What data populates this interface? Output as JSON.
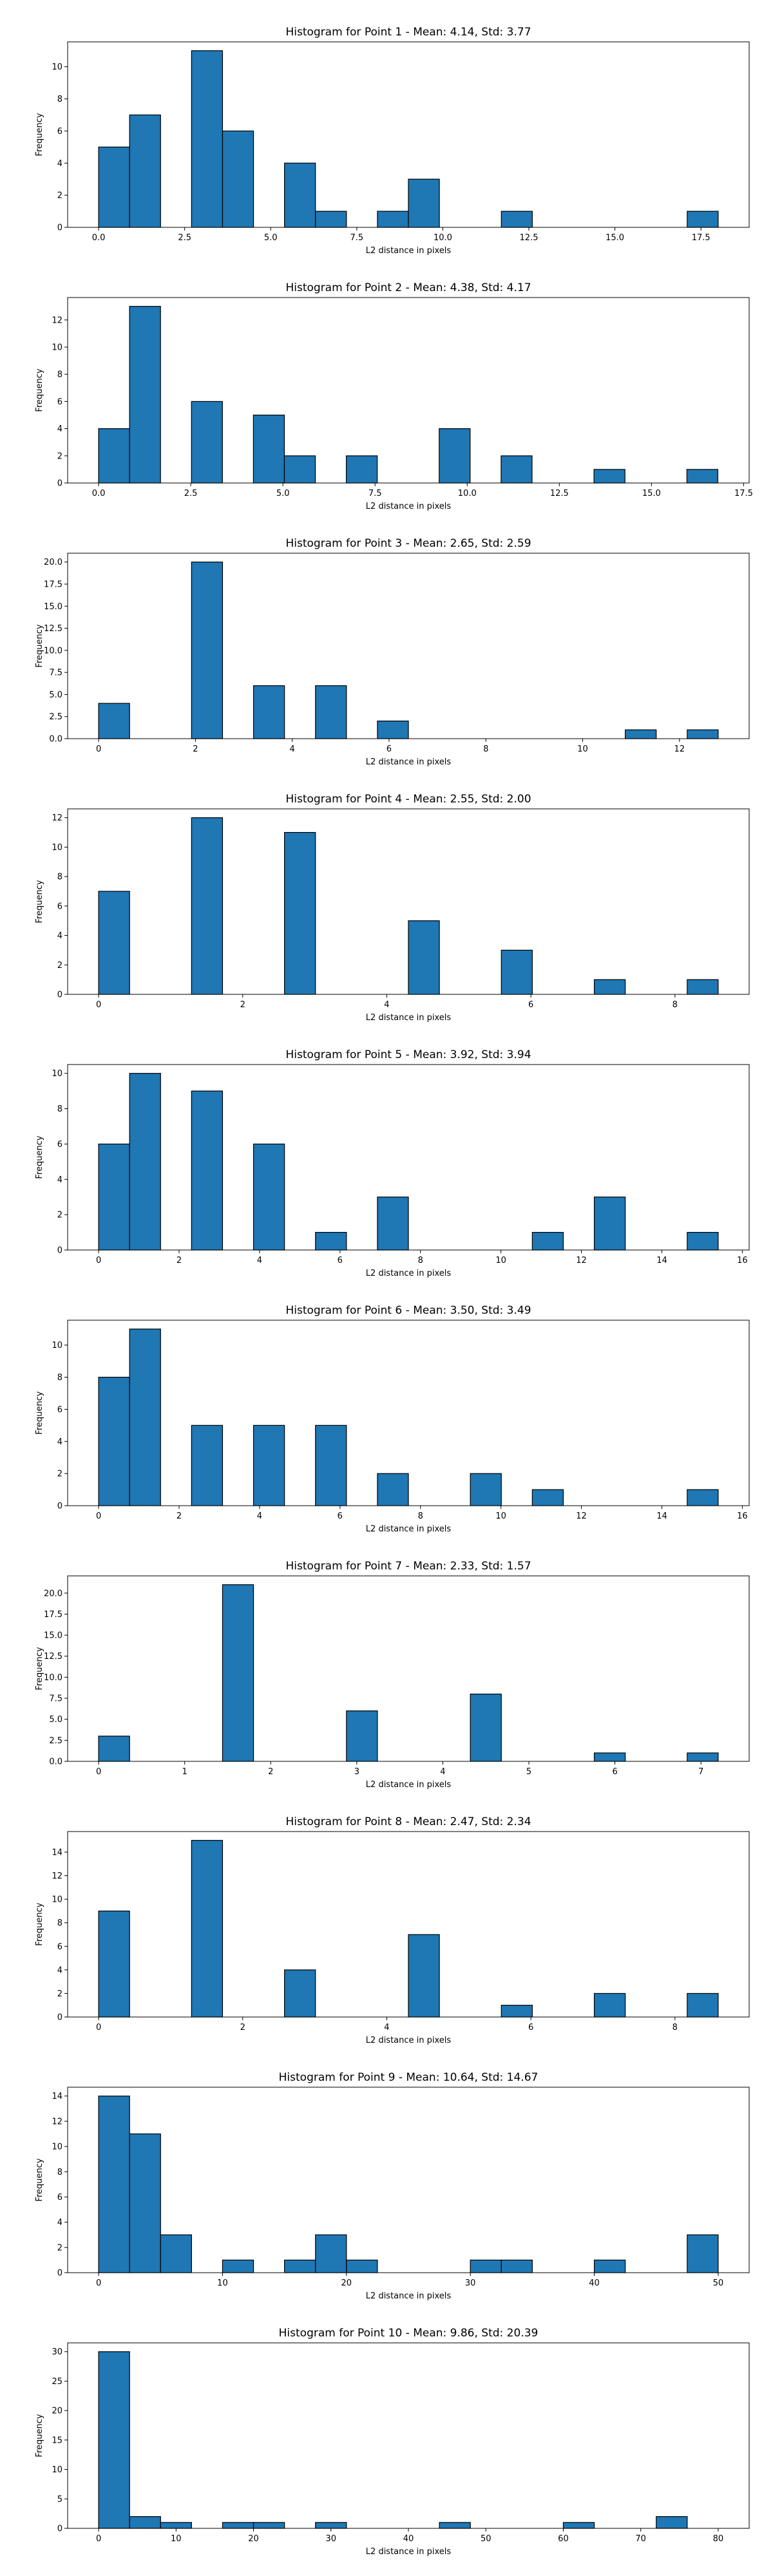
{
  "figure": {
    "background": "#ffffff",
    "bar_color": "#1f77b4",
    "edge_color": "#000000"
  },
  "chart_data": [
    {
      "type": "bar",
      "title": "Histogram for Point 1 - Mean: 4.14, Std: 3.77",
      "xlabel": "L2 distance in pixels",
      "ylabel": "Frequency",
      "xlim": [
        -0.9,
        18.9
      ],
      "ylim": [
        0,
        11.55
      ],
      "xticks": [
        0,
        2.5,
        5,
        7.5,
        10,
        12.5,
        15,
        17.5
      ],
      "xtick_labels": [
        "0.0",
        "2.5",
        "5.0",
        "7.5",
        "10.0",
        "12.5",
        "15.0",
        "17.5"
      ],
      "yticks": [
        0,
        2,
        4,
        6,
        8,
        10
      ],
      "ytick_labels": [
        "0",
        "2",
        "4",
        "6",
        "8",
        "10"
      ],
      "bins": [
        0,
        0.9,
        1.8,
        2.7,
        3.6,
        4.5,
        5.4,
        6.3,
        7.2,
        8.1,
        9.0,
        9.9,
        10.8,
        11.7,
        12.6,
        13.5,
        14.4,
        15.3,
        16.2,
        17.1,
        18.0
      ],
      "counts": [
        5,
        7,
        0,
        11,
        6,
        0,
        4,
        1,
        0,
        1,
        3,
        0,
        0,
        1,
        0,
        0,
        0,
        0,
        0,
        1
      ]
    },
    {
      "type": "bar",
      "title": "Histogram for Point 2 - Mean: 4.38, Std: 4.17",
      "xlabel": "L2 distance in pixels",
      "ylabel": "Frequency",
      "xlim": [
        -0.84,
        17.65
      ],
      "ylim": [
        0,
        13.65
      ],
      "xticks": [
        0,
        2.5,
        5,
        7.5,
        10,
        12.5,
        15,
        17.5
      ],
      "xtick_labels": [
        "0.0",
        "2.5",
        "5.0",
        "7.5",
        "10.0",
        "12.5",
        "15.0",
        "17.5"
      ],
      "yticks": [
        0,
        2,
        4,
        6,
        8,
        10,
        12
      ],
      "ytick_labels": [
        "0",
        "2",
        "4",
        "6",
        "8",
        "10",
        "12"
      ],
      "bins": [
        0,
        0.84,
        1.68,
        2.52,
        3.36,
        4.2,
        5.04,
        5.88,
        6.72,
        7.56,
        8.4,
        9.24,
        10.08,
        10.92,
        11.76,
        12.6,
        13.44,
        14.28,
        15.12,
        15.96,
        16.8
      ],
      "counts": [
        4,
        13,
        0,
        6,
        0,
        5,
        2,
        0,
        2,
        0,
        0,
        4,
        0,
        2,
        0,
        0,
        1,
        0,
        0,
        1
      ]
    },
    {
      "type": "bar",
      "title": "Histogram for Point 3 - Mean: 2.65, Std: 2.59",
      "xlabel": "L2 distance in pixels",
      "ylabel": "Frequency",
      "xlim": [
        -0.64,
        13.44
      ],
      "ylim": [
        0,
        21
      ],
      "xticks": [
        0,
        2,
        4,
        6,
        8,
        10,
        12
      ],
      "xtick_labels": [
        "0",
        "2",
        "4",
        "6",
        "8",
        "10",
        "12"
      ],
      "yticks": [
        0,
        2.5,
        5,
        7.5,
        10,
        12.5,
        15,
        17.5,
        20
      ],
      "ytick_labels": [
        "0.0",
        "2.5",
        "5.0",
        "7.5",
        "10.0",
        "12.5",
        "15.0",
        "17.5",
        "20.0"
      ],
      "bins": [
        0,
        0.64,
        1.28,
        1.92,
        2.56,
        3.2,
        3.84,
        4.48,
        5.12,
        5.76,
        6.4,
        7.04,
        7.68,
        8.32,
        8.96,
        9.6,
        10.24,
        10.88,
        11.52,
        12.16,
        12.8
      ],
      "counts": [
        4,
        0,
        0,
        20,
        0,
        6,
        0,
        6,
        0,
        2,
        0,
        0,
        0,
        0,
        0,
        0,
        0,
        1,
        0,
        1
      ]
    },
    {
      "type": "bar",
      "title": "Histogram for Point 4 - Mean: 2.55, Std: 2.00",
      "xlabel": "L2 distance in pixels",
      "ylabel": "Frequency",
      "xlim": [
        -0.43,
        9.03
      ],
      "ylim": [
        0,
        12.6
      ],
      "xticks": [
        0,
        2,
        4,
        6,
        8
      ],
      "xtick_labels": [
        "0",
        "2",
        "4",
        "6",
        "8"
      ],
      "yticks": [
        0,
        2,
        4,
        6,
        8,
        10,
        12
      ],
      "ytick_labels": [
        "0",
        "2",
        "4",
        "6",
        "8",
        "10",
        "12"
      ],
      "bins": [
        0,
        0.43,
        0.86,
        1.29,
        1.72,
        2.15,
        2.58,
        3.01,
        3.44,
        3.87,
        4.3,
        4.73,
        5.16,
        5.59,
        6.02,
        6.45,
        6.88,
        7.31,
        7.74,
        8.17,
        8.6
      ],
      "counts": [
        7,
        0,
        0,
        12,
        0,
        0,
        11,
        0,
        0,
        0,
        5,
        0,
        0,
        3,
        0,
        0,
        1,
        0,
        0,
        1
      ]
    },
    {
      "type": "bar",
      "title": "Histogram for Point 5 - Mean: 3.92, Std: 3.94",
      "xlabel": "L2 distance in pixels",
      "ylabel": "Frequency",
      "xlim": [
        -0.77,
        16.17
      ],
      "ylim": [
        0,
        10.5
      ],
      "xticks": [
        0,
        2,
        4,
        6,
        8,
        10,
        12,
        14,
        16
      ],
      "xtick_labels": [
        "0",
        "2",
        "4",
        "6",
        "8",
        "10",
        "12",
        "14",
        "16"
      ],
      "yticks": [
        0,
        2,
        4,
        6,
        8,
        10
      ],
      "ytick_labels": [
        "0",
        "2",
        "4",
        "6",
        "8",
        "10"
      ],
      "bins": [
        0,
        0.77,
        1.54,
        2.31,
        3.08,
        3.85,
        4.62,
        5.39,
        6.16,
        6.93,
        7.7,
        8.47,
        9.24,
        10.01,
        10.78,
        11.55,
        12.32,
        13.09,
        13.86,
        14.63,
        15.4
      ],
      "counts": [
        6,
        10,
        0,
        9,
        0,
        6,
        0,
        1,
        0,
        3,
        0,
        0,
        0,
        0,
        1,
        0,
        3,
        0,
        0,
        1
      ]
    },
    {
      "type": "bar",
      "title": "Histogram for Point 6 - Mean: 3.50, Std: 3.49",
      "xlabel": "L2 distance in pixels",
      "ylabel": "Frequency",
      "xlim": [
        -0.77,
        16.17
      ],
      "ylim": [
        0,
        11.55
      ],
      "xticks": [
        0,
        2,
        4,
        6,
        8,
        10,
        12,
        14,
        16
      ],
      "xtick_labels": [
        "0",
        "2",
        "4",
        "6",
        "8",
        "10",
        "12",
        "14",
        "16"
      ],
      "yticks": [
        0,
        2,
        4,
        6,
        8,
        10
      ],
      "ytick_labels": [
        "0",
        "2",
        "4",
        "6",
        "8",
        "10"
      ],
      "bins": [
        0,
        0.77,
        1.54,
        2.31,
        3.08,
        3.85,
        4.62,
        5.39,
        6.16,
        6.93,
        7.7,
        8.47,
        9.24,
        10.01,
        10.78,
        11.55,
        12.32,
        13.09,
        13.86,
        14.63,
        15.4
      ],
      "counts": [
        8,
        11,
        0,
        5,
        0,
        5,
        0,
        5,
        0,
        2,
        0,
        0,
        2,
        0,
        1,
        0,
        0,
        0,
        0,
        1
      ]
    },
    {
      "type": "bar",
      "title": "Histogram for Point 7 - Mean: 2.33, Std: 1.57",
      "xlabel": "L2 distance in pixels",
      "ylabel": "Frequency",
      "xlim": [
        -0.36,
        7.56
      ],
      "ylim": [
        0,
        22.05
      ],
      "xticks": [
        0,
        1,
        2,
        3,
        4,
        5,
        6,
        7
      ],
      "xtick_labels": [
        "0",
        "1",
        "2",
        "3",
        "4",
        "5",
        "6",
        "7"
      ],
      "yticks": [
        0,
        2.5,
        5,
        7.5,
        10,
        12.5,
        15,
        17.5,
        20
      ],
      "ytick_labels": [
        "0.0",
        "2.5",
        "5.0",
        "7.5",
        "10.0",
        "12.5",
        "15.0",
        "17.5",
        "20.0"
      ],
      "bins": [
        0,
        0.36,
        0.72,
        1.08,
        1.44,
        1.8,
        2.16,
        2.52,
        2.88,
        3.24,
        3.6,
        3.96,
        4.32,
        4.68,
        5.04,
        5.4,
        5.76,
        6.12,
        6.48,
        6.84,
        7.2
      ],
      "counts": [
        3,
        0,
        0,
        0,
        21,
        0,
        0,
        0,
        6,
        0,
        0,
        0,
        8,
        0,
        0,
        0,
        1,
        0,
        0,
        1
      ]
    },
    {
      "type": "bar",
      "title": "Histogram for Point 8 - Mean: 2.47, Std: 2.34",
      "xlabel": "L2 distance in pixels",
      "ylabel": "Frequency",
      "xlim": [
        -0.43,
        9.03
      ],
      "ylim": [
        0,
        15.75
      ],
      "xticks": [
        0,
        2,
        4,
        6,
        8
      ],
      "xtick_labels": [
        "0",
        "2",
        "4",
        "6",
        "8"
      ],
      "yticks": [
        0,
        2,
        4,
        6,
        8,
        10,
        12,
        14
      ],
      "ytick_labels": [
        "0",
        "2",
        "4",
        "6",
        "8",
        "10",
        "12",
        "14"
      ],
      "bins": [
        0,
        0.43,
        0.86,
        1.29,
        1.72,
        2.15,
        2.58,
        3.01,
        3.44,
        3.87,
        4.3,
        4.73,
        5.16,
        5.59,
        6.02,
        6.45,
        6.88,
        7.31,
        7.74,
        8.17,
        8.6
      ],
      "counts": [
        9,
        0,
        0,
        15,
        0,
        0,
        4,
        0,
        0,
        0,
        7,
        0,
        0,
        1,
        0,
        0,
        2,
        0,
        0,
        2
      ]
    },
    {
      "type": "bar",
      "title": "Histogram for Point 9 - Mean: 10.64, Std: 14.67",
      "xlabel": "L2 distance in pixels",
      "ylabel": "Frequency",
      "xlim": [
        -2.5,
        52.5
      ],
      "ylim": [
        0,
        14.7
      ],
      "xticks": [
        0,
        10,
        20,
        30,
        40,
        50
      ],
      "xtick_labels": [
        "0",
        "10",
        "20",
        "30",
        "40",
        "50"
      ],
      "yticks": [
        0,
        2,
        4,
        6,
        8,
        10,
        12,
        14
      ],
      "ytick_labels": [
        "0",
        "2",
        "4",
        "6",
        "8",
        "10",
        "12",
        "14"
      ],
      "bins": [
        0,
        2.5,
        5,
        7.5,
        10,
        12.5,
        15,
        17.5,
        20,
        22.5,
        25,
        27.5,
        30,
        32.5,
        35,
        37.5,
        40,
        42.5,
        45,
        47.5,
        50
      ],
      "counts": [
        14,
        11,
        3,
        0,
        1,
        0,
        1,
        3,
        1,
        0,
        0,
        0,
        1,
        1,
        0,
        0,
        1,
        0,
        0,
        3
      ]
    },
    {
      "type": "bar",
      "title": "Histogram for Point 10 - Mean: 9.86, Std: 20.39",
      "xlabel": "L2 distance in pixels",
      "ylabel": "Frequency",
      "xlim": [
        -4,
        84
      ],
      "ylim": [
        0,
        31.5
      ],
      "xticks": [
        0,
        10,
        20,
        30,
        40,
        50,
        60,
        70,
        80
      ],
      "xtick_labels": [
        "0",
        "10",
        "20",
        "30",
        "40",
        "50",
        "60",
        "70",
        "80"
      ],
      "yticks": [
        0,
        5,
        10,
        15,
        20,
        25,
        30
      ],
      "ytick_labels": [
        "0",
        "5",
        "10",
        "15",
        "20",
        "25",
        "30"
      ],
      "bins": [
        0,
        4,
        8,
        12,
        16,
        20,
        24,
        28,
        32,
        36,
        40,
        44,
        48,
        52,
        56,
        60,
        64,
        68,
        72,
        76,
        80
      ],
      "counts": [
        30,
        2,
        1,
        0,
        1,
        1,
        0,
        1,
        0,
        0,
        0,
        1,
        0,
        0,
        0,
        1,
        0,
        0,
        2,
        0
      ]
    }
  ]
}
